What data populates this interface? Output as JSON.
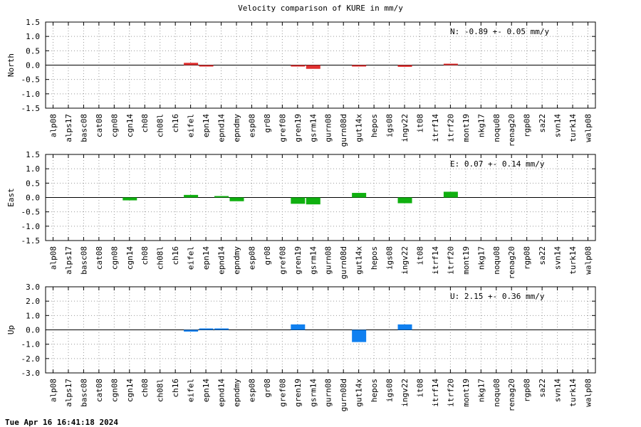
{
  "title": "Velocity comparison of KURE in mm/y",
  "footer": "Tue Apr 16 16:41:18 2024",
  "chart_data": [
    {
      "type": "bar",
      "ylabel": "North",
      "ylim": [
        -1.5,
        1.5
      ],
      "yticks": [
        "1.5",
        "1.0",
        "0.5",
        "0.0",
        "-0.5",
        "-1.0",
        "-1.5"
      ],
      "color": "#e03030",
      "annotation": "N:  -0.89 +-  0.05 mm/y",
      "grid": true,
      "categories": [
        "alp08",
        "alps17",
        "basc08",
        "cat08",
        "cgn08",
        "cgn14",
        "ch08",
        "ch08l",
        "ch16",
        "eifel",
        "epn14",
        "epnd14",
        "epndmy",
        "esp08",
        "gr08",
        "gref08",
        "gren19",
        "gsrm14",
        "gurn08",
        "gurn08d",
        "gut14x",
        "hepos",
        "igs08",
        "ingv22",
        "it08",
        "itrf14",
        "itrf20",
        "mont19",
        "nkg17",
        "noqu08",
        "renag20",
        "rgp08",
        "sa22",
        "svn14",
        "turk14",
        "walp08"
      ],
      "values": [
        null,
        null,
        null,
        null,
        null,
        null,
        null,
        null,
        null,
        0.08,
        -0.05,
        null,
        null,
        null,
        null,
        null,
        -0.05,
        -0.13,
        null,
        null,
        -0.02,
        null,
        null,
        -0.06,
        null,
        null,
        0.01,
        null,
        null,
        null,
        null,
        null,
        null,
        null,
        null,
        null
      ]
    },
    {
      "type": "bar",
      "ylabel": "East",
      "ylim": [
        -1.5,
        1.5
      ],
      "yticks": [
        "1.5",
        "1.0",
        "0.5",
        "0.0",
        "-0.5",
        "-1.0",
        "-1.5"
      ],
      "color": "#10b010",
      "annotation": "E:   0.07 +-  0.14 mm/y",
      "grid": true,
      "categories": [
        "alp08",
        "alps17",
        "basc08",
        "cat08",
        "cgn08",
        "cgn14",
        "ch08",
        "ch08l",
        "ch16",
        "eifel",
        "epn14",
        "epnd14",
        "epndmy",
        "esp08",
        "gr08",
        "gref08",
        "gren19",
        "gsrm14",
        "gurn08",
        "gurn08d",
        "gut14x",
        "hepos",
        "igs08",
        "ingv22",
        "it08",
        "itrf14",
        "itrf20",
        "mont19",
        "nkg17",
        "noqu08",
        "renag20",
        "rgp08",
        "sa22",
        "svn14",
        "turk14",
        "walp08"
      ],
      "values": [
        null,
        null,
        null,
        null,
        null,
        -0.1,
        null,
        null,
        null,
        0.09,
        null,
        0.04,
        -0.13,
        null,
        null,
        null,
        -0.22,
        -0.24,
        null,
        null,
        0.16,
        null,
        null,
        -0.2,
        null,
        null,
        0.2,
        null,
        null,
        null,
        null,
        null,
        null,
        null,
        null,
        null
      ]
    },
    {
      "type": "bar",
      "ylabel": "Up",
      "ylim": [
        -3.0,
        3.0
      ],
      "yticks": [
        "3.0",
        "2.0",
        "1.0",
        "0.0",
        "-1.0",
        "-2.0",
        "-3.0"
      ],
      "color": "#1080f0",
      "annotation": "U:   2.15 +-  0.36 mm/y",
      "grid": true,
      "categories": [
        "alp08",
        "alps17",
        "basc08",
        "cat08",
        "cgn08",
        "cgn14",
        "ch08",
        "ch08l",
        "ch16",
        "eifel",
        "epn14",
        "epnd14",
        "epndmy",
        "esp08",
        "gr08",
        "gref08",
        "gren19",
        "gsrm14",
        "gurn08",
        "gurn08d",
        "gut14x",
        "hepos",
        "igs08",
        "ingv22",
        "it08",
        "itrf14",
        "itrf20",
        "mont19",
        "nkg17",
        "noqu08",
        "renag20",
        "rgp08",
        "sa22",
        "svn14",
        "turk14",
        "walp08"
      ],
      "values": [
        null,
        null,
        null,
        null,
        null,
        null,
        null,
        null,
        null,
        -0.12,
        0.04,
        0.04,
        null,
        null,
        null,
        null,
        0.38,
        null,
        null,
        null,
        -0.85,
        null,
        null,
        0.38,
        null,
        null,
        null,
        null,
        null,
        null,
        null,
        null,
        null,
        null,
        null,
        null
      ]
    }
  ]
}
